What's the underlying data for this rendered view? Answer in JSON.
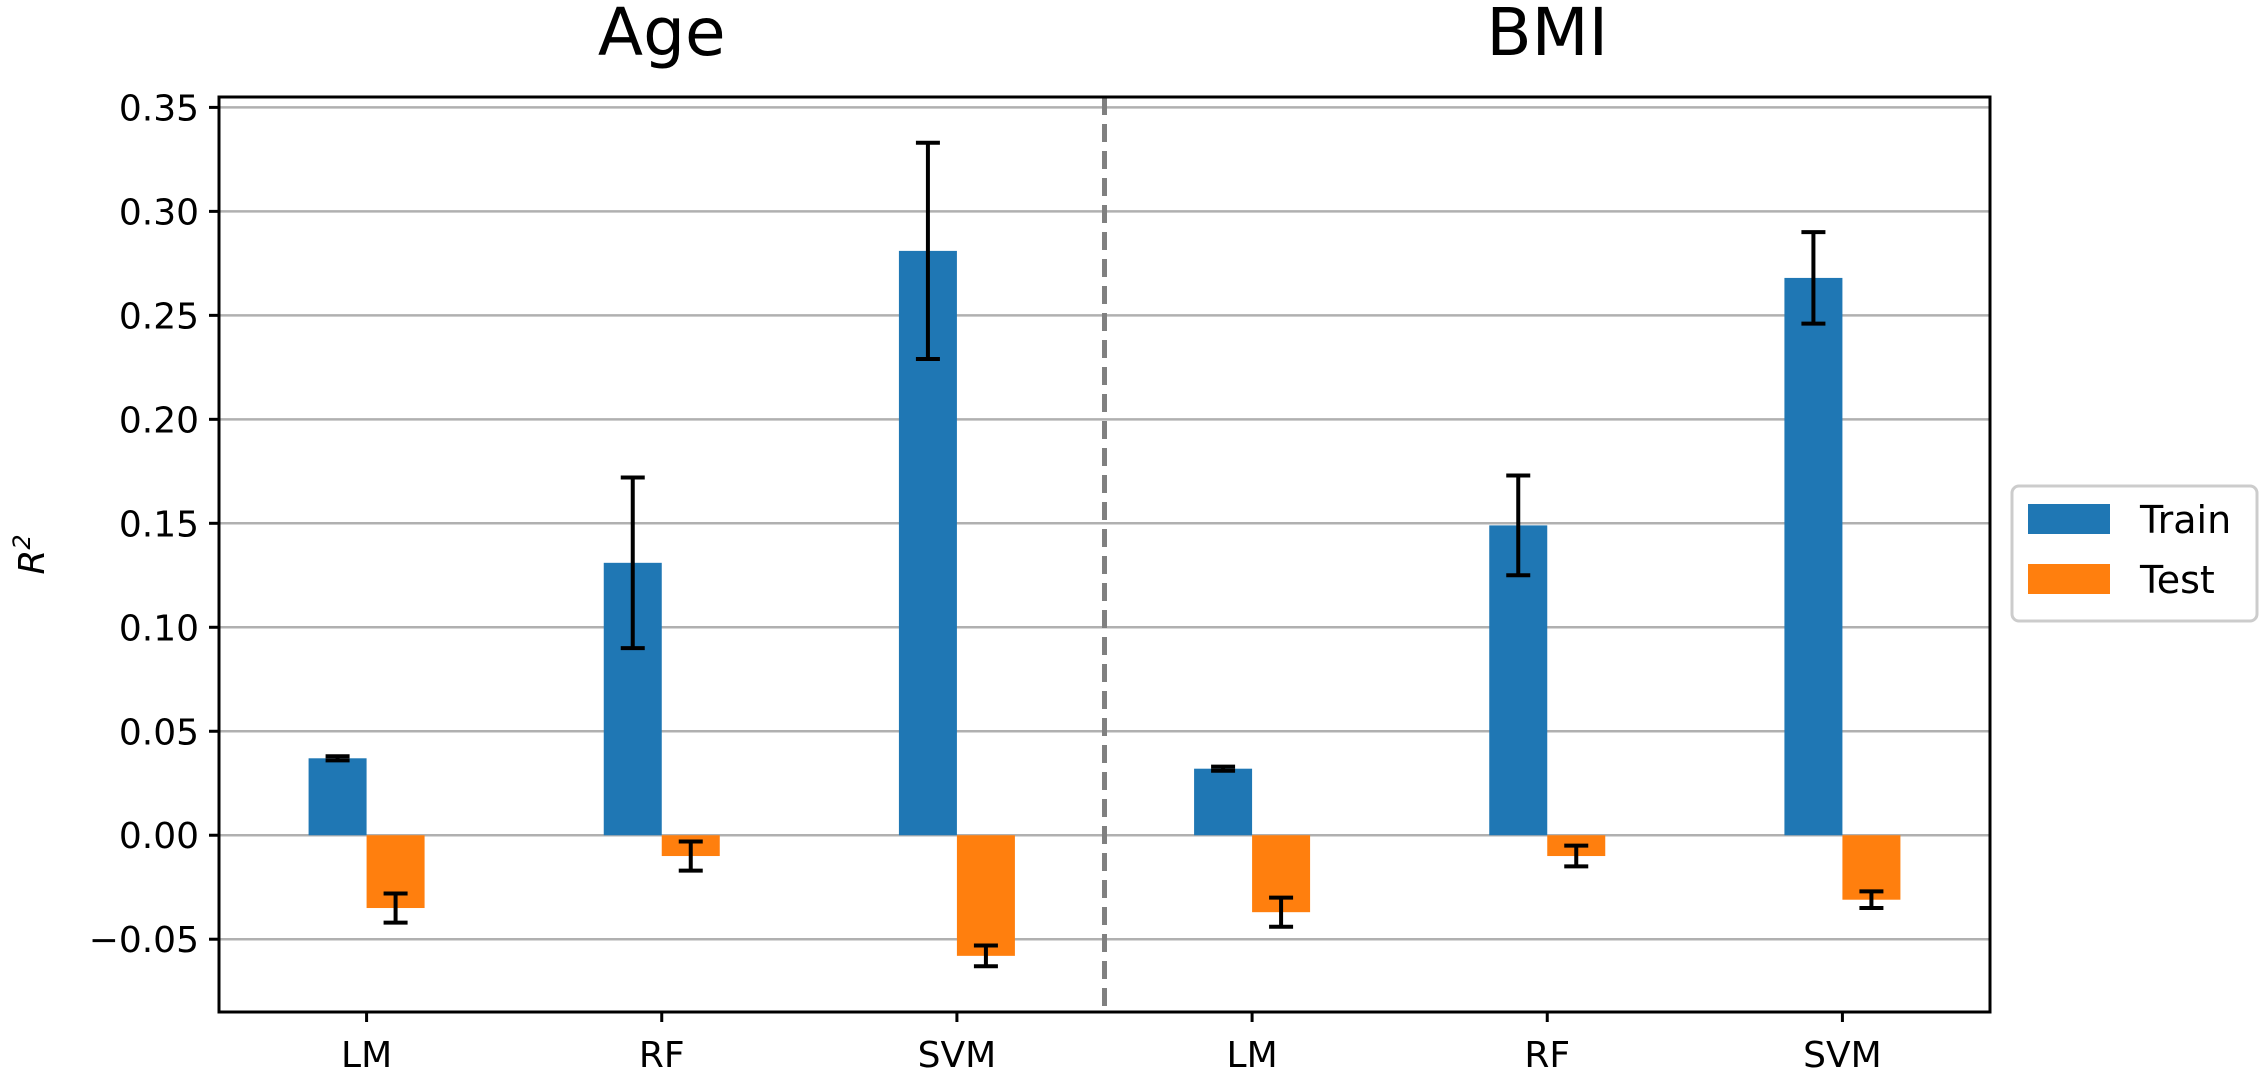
{
  "chart_data": {
    "type": "bar",
    "ylabel": "R",
    "ylabel_superscript": "2",
    "ylim": [
      -0.085,
      0.355
    ],
    "yticks": [
      -0.05,
      0.0,
      0.05,
      0.1,
      0.15,
      0.2,
      0.25,
      0.3,
      0.35
    ],
    "ytick_labels": [
      "−0.05",
      "0.00",
      "0.05",
      "0.10",
      "0.15",
      "0.20",
      "0.25",
      "0.30",
      "0.35"
    ],
    "grid": true,
    "legend_position": "right",
    "groups": [
      {
        "title": "Age",
        "categories": [
          "LM",
          "RF",
          "SVM"
        ],
        "series": [
          {
            "name": "Train",
            "values": [
              0.037,
              0.131,
              0.281
            ],
            "errors": [
              0.001,
              0.041,
              0.052
            ]
          },
          {
            "name": "Test",
            "values": [
              -0.035,
              -0.01,
              -0.058
            ],
            "errors": [
              0.007,
              0.007,
              0.005
            ]
          }
        ]
      },
      {
        "title": "BMI",
        "categories": [
          "LM",
          "RF",
          "SVM"
        ],
        "series": [
          {
            "name": "Train",
            "values": [
              0.032,
              0.149,
              0.268
            ],
            "errors": [
              0.001,
              0.024,
              0.022
            ]
          },
          {
            "name": "Test",
            "values": [
              -0.037,
              -0.01,
              -0.031
            ],
            "errors": [
              0.007,
              0.005,
              0.004
            ]
          }
        ]
      }
    ],
    "legend": [
      {
        "name": "Train",
        "color": "#1f77b4"
      },
      {
        "name": "Test",
        "color": "#ff7f0e"
      }
    ]
  }
}
